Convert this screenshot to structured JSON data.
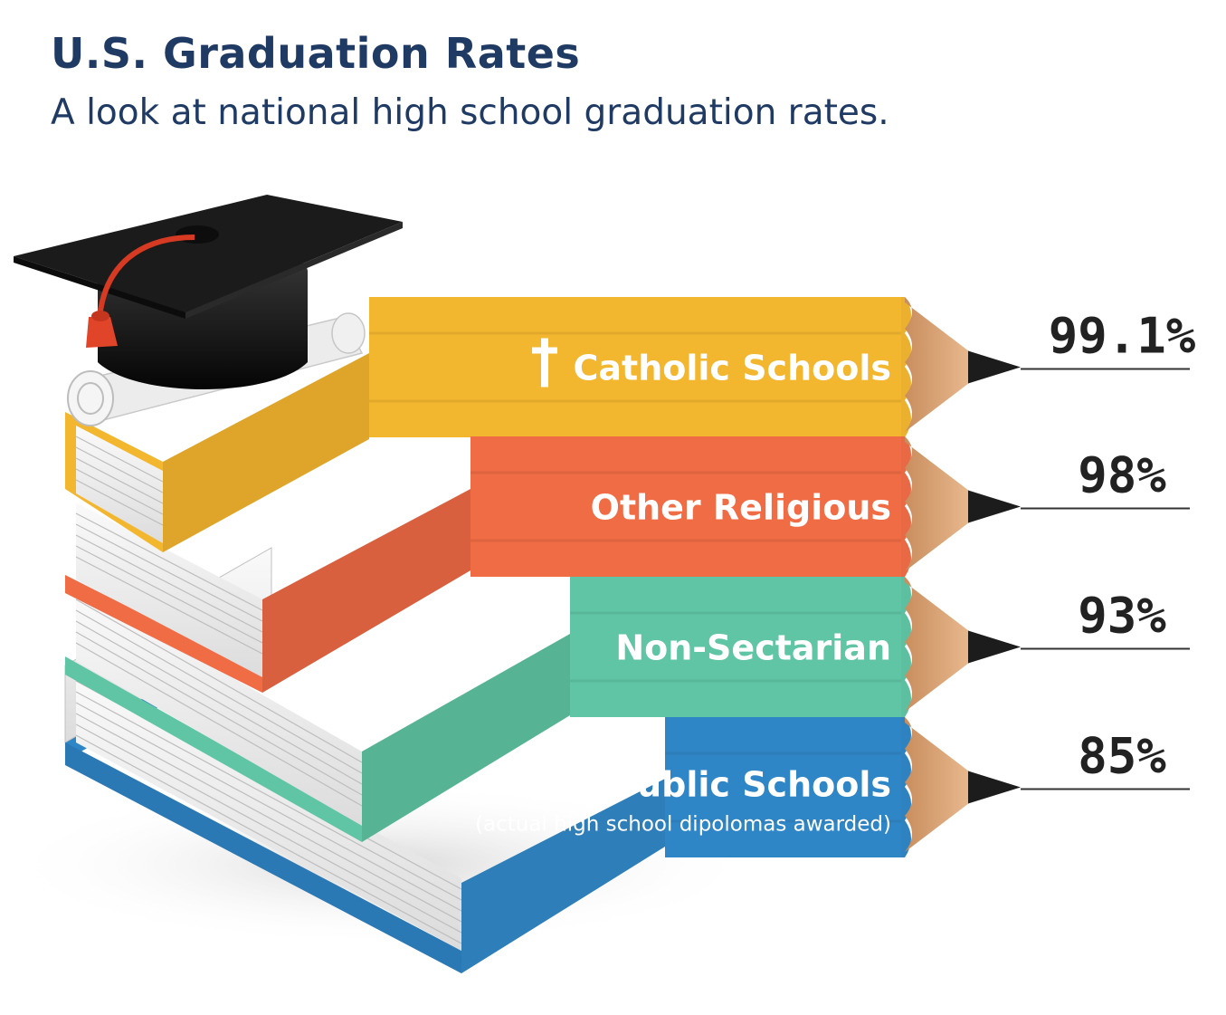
{
  "header": {
    "title": "U.S. Graduation Rates",
    "subtitle": "A look at national high school graduation rates."
  },
  "chart_data": {
    "type": "bar",
    "title": "U.S. Graduation Rates",
    "subtitle": "A look at national high school graduation rates.",
    "unit": "%",
    "categories": [
      "Catholic Schools",
      "Other Religious",
      "Non-Sectarian",
      "Public Schools"
    ],
    "notes": [
      "",
      "",
      "",
      "(actual high school dipolomas awarded)"
    ],
    "values": [
      99.1,
      98,
      93,
      85
    ],
    "value_labels": [
      "99.1%",
      "98%",
      "93%",
      "85%"
    ],
    "colors": [
      "#f2b62f",
      "#ef6c45",
      "#5fc5a5",
      "#2f86c6"
    ],
    "icons": [
      "cross-icon",
      "",
      "",
      ""
    ],
    "decorations": [
      "graduation-cap-icon",
      "diploma-scroll-icon",
      "book-stack-icon",
      "pencil-icon"
    ]
  }
}
